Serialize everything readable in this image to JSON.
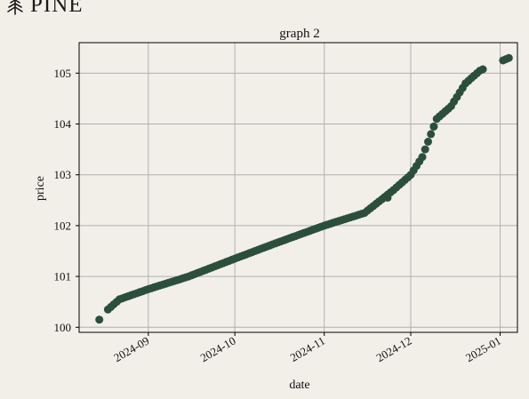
{
  "brand": {
    "name": "PINE",
    "icon": "tree-icon"
  },
  "colors": {
    "background": "#f2efe9",
    "marker": "#2b4f3b",
    "grid": "#b0b0b0",
    "axis": "#000000"
  },
  "chart_data": {
    "type": "scatter",
    "title": "graph 2",
    "xlabel": "date",
    "ylabel": "price",
    "xlim": [
      "2024-08-08",
      "2025-01-07"
    ],
    "ylim": [
      99.9,
      105.6
    ],
    "xticks": [
      "2024-09",
      "2024-10",
      "2024-11",
      "2024-12",
      "2025-01"
    ],
    "yticks": [
      "100",
      "101",
      "102",
      "103",
      "104",
      "105"
    ],
    "grid": true,
    "legend": "none",
    "x_anchor_dates": [
      "2024-08-15",
      "2024-08-18",
      "2024-08-22",
      "2024-09-01",
      "2024-09-15",
      "2024-10-01",
      "2024-10-15",
      "2024-11-01",
      "2024-11-15",
      "2024-11-25",
      "2024-12-01",
      "2024-12-05",
      "2024-12-10",
      "2024-12-15",
      "2024-12-20",
      "2024-12-25",
      "2025-01-04"
    ],
    "y_anchor_values": [
      100.15,
      100.35,
      100.55,
      100.75,
      101.0,
      101.35,
      101.65,
      102.0,
      102.25,
      102.7,
      103.0,
      103.35,
      104.1,
      104.35,
      104.8,
      105.05,
      105.3
    ],
    "outliers": [
      {
        "x": "2024-11-23",
        "y": 102.55
      },
      {
        "x": "2024-12-09",
        "y": 103.95
      }
    ]
  }
}
